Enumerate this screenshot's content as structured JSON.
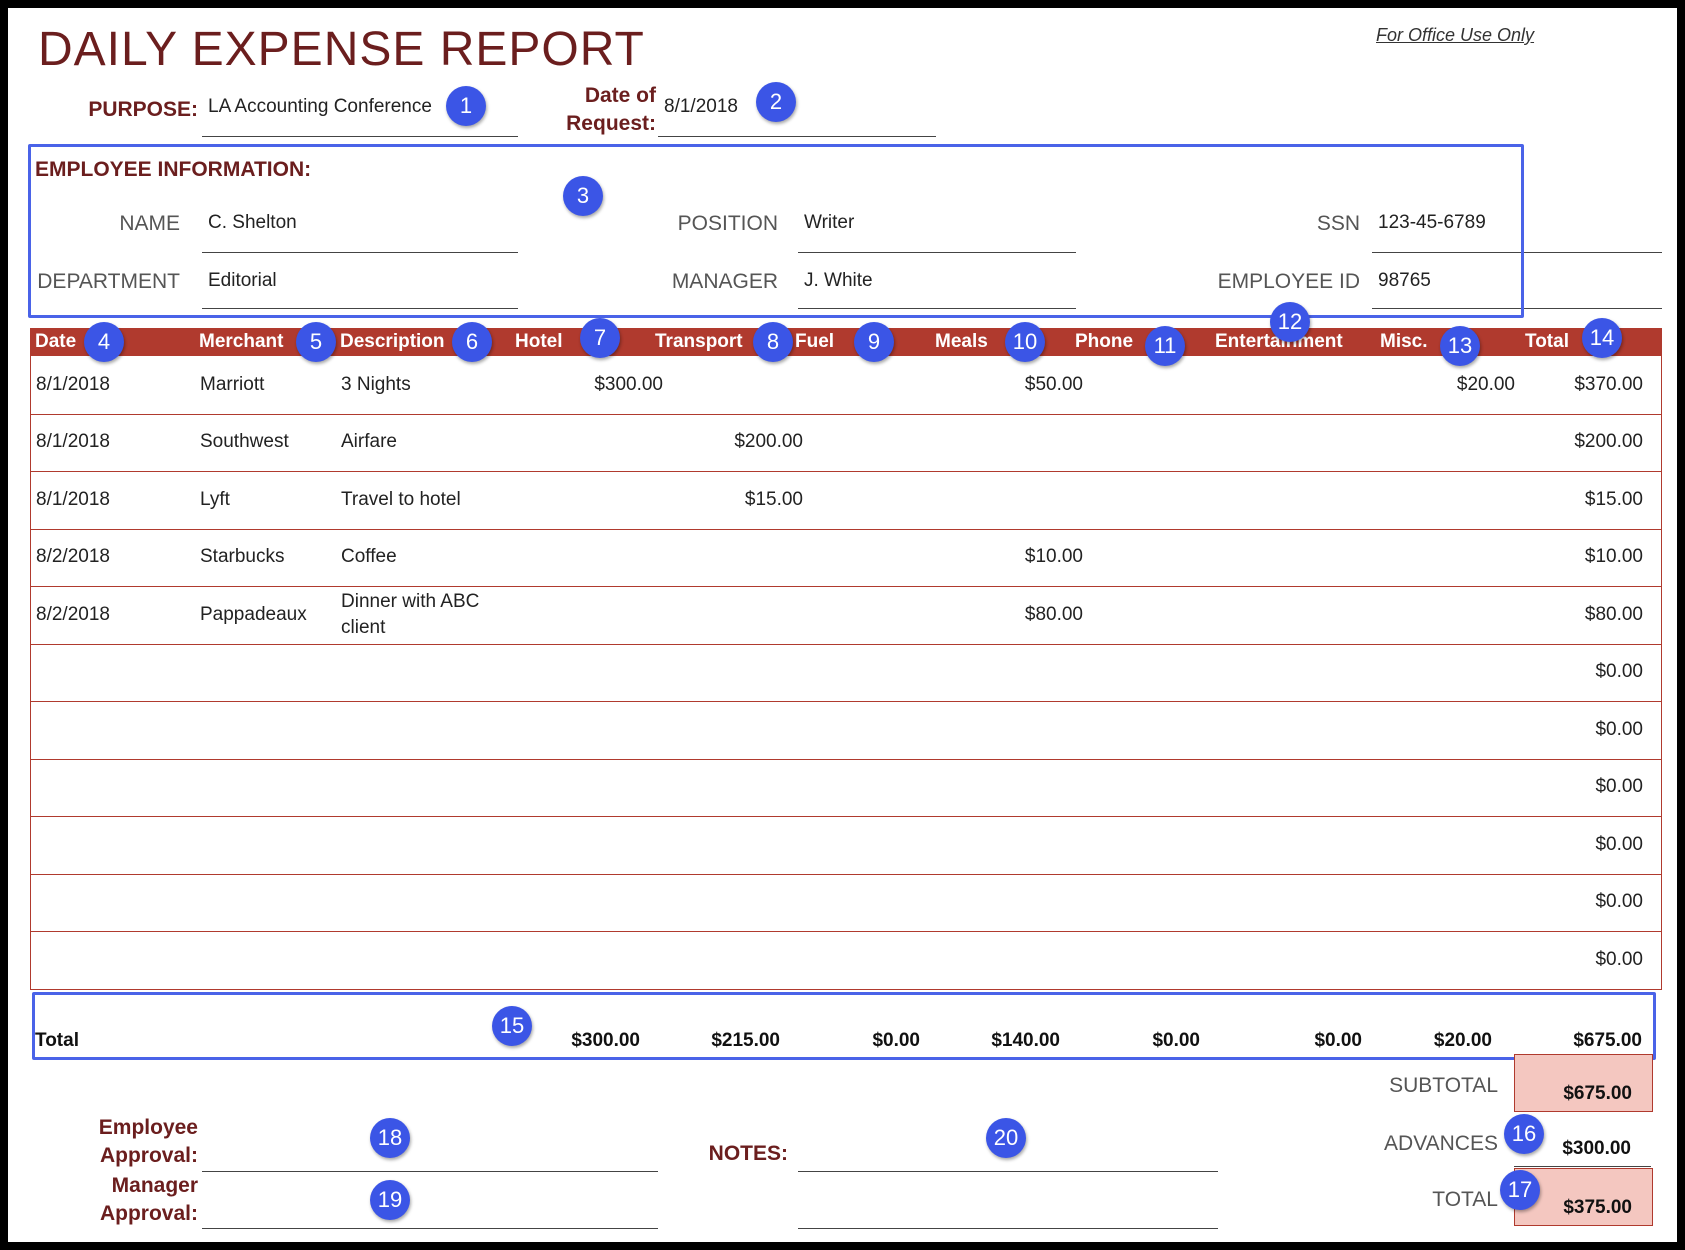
{
  "header": {
    "title": "DAILY EXPENSE REPORT",
    "office_note": "For Office Use Only",
    "purpose_label": "PURPOSE:",
    "purpose_value": "LA Accounting Conference",
    "date_label_1": "Date of",
    "date_label_2": "Request:",
    "date_value": "8/1/2018"
  },
  "employee": {
    "section_title": "EMPLOYEE INFORMATION:",
    "name_label": "NAME",
    "name_value": "C. Shelton",
    "department_label": "DEPARTMENT",
    "department_value": "Editorial",
    "position_label": "POSITION",
    "position_value": "Writer",
    "manager_label": "MANAGER",
    "manager_value": "J. White",
    "ssn_label": "SSN",
    "ssn_value": "123-45-6789",
    "id_label": "EMPLOYEE ID",
    "id_value": "98765"
  },
  "columns": [
    "Date",
    "Merchant",
    "Description",
    "Hotel",
    "Transport",
    "Fuel",
    "Meals",
    "Phone",
    "Entertainment",
    "Misc.",
    "Total"
  ],
  "rows": [
    {
      "date": "8/1/2018",
      "merchant": "Marriott",
      "description": "3 Nights",
      "hotel": "$300.00",
      "transport": "",
      "fuel": "",
      "meals": "$50.00",
      "phone": "",
      "entertainment": "",
      "misc": "$20.00",
      "total": "$370.00"
    },
    {
      "date": "8/1/2018",
      "merchant": "Southwest",
      "description": "Airfare",
      "hotel": "",
      "transport": "$200.00",
      "fuel": "",
      "meals": "",
      "phone": "",
      "entertainment": "",
      "misc": "",
      "total": "$200.00"
    },
    {
      "date": "8/1/2018",
      "merchant": "Lyft",
      "description": "Travel to hotel",
      "hotel": "",
      "transport": "$15.00",
      "fuel": "",
      "meals": "",
      "phone": "",
      "entertainment": "",
      "misc": "",
      "total": "$15.00"
    },
    {
      "date": "8/2/2018",
      "merchant": "Starbucks",
      "description": "Coffee",
      "hotel": "",
      "transport": "",
      "fuel": "",
      "meals": "$10.00",
      "phone": "",
      "entertainment": "",
      "misc": "",
      "total": "$10.00"
    },
    {
      "date": "8/2/2018",
      "merchant": "Pappadeaux",
      "description": "Dinner with ABC client",
      "hotel": "",
      "transport": "",
      "fuel": "",
      "meals": "$80.00",
      "phone": "",
      "entertainment": "",
      "misc": "",
      "total": "$80.00"
    },
    {
      "total": "$0.00"
    },
    {
      "total": "$0.00"
    },
    {
      "total": "$0.00"
    },
    {
      "total": "$0.00"
    },
    {
      "total": "$0.00"
    },
    {
      "total": "$0.00"
    }
  ],
  "totals": {
    "label": "Total",
    "hotel": "$300.00",
    "transport": "$215.00",
    "fuel": "$0.00",
    "meals": "$140.00",
    "phone": "$0.00",
    "entertainment": "$0.00",
    "misc": "$20.00",
    "total": "$675.00"
  },
  "summary": {
    "subtotal_label": "SUBTOTAL",
    "subtotal_value": "$675.00",
    "advances_label": "ADVANCES",
    "advances_value": "$300.00",
    "total_label": "TOTAL",
    "total_value": "$375.00"
  },
  "approvals": {
    "employee_1": "Employee",
    "employee_2": "Approval:",
    "manager_1": "Manager",
    "manager_2": "Approval:",
    "notes_label": "NOTES:"
  },
  "badges": [
    "1",
    "2",
    "3",
    "4",
    "5",
    "6",
    "7",
    "8",
    "9",
    "10",
    "11",
    "12",
    "13",
    "14",
    "15",
    "16",
    "17",
    "18",
    "19",
    "20"
  ],
  "colors": {
    "accent": "#b03a2e",
    "title": "#6b1e1e",
    "badge": "#3b55e6",
    "summary_fill": "#f4c7c0"
  }
}
